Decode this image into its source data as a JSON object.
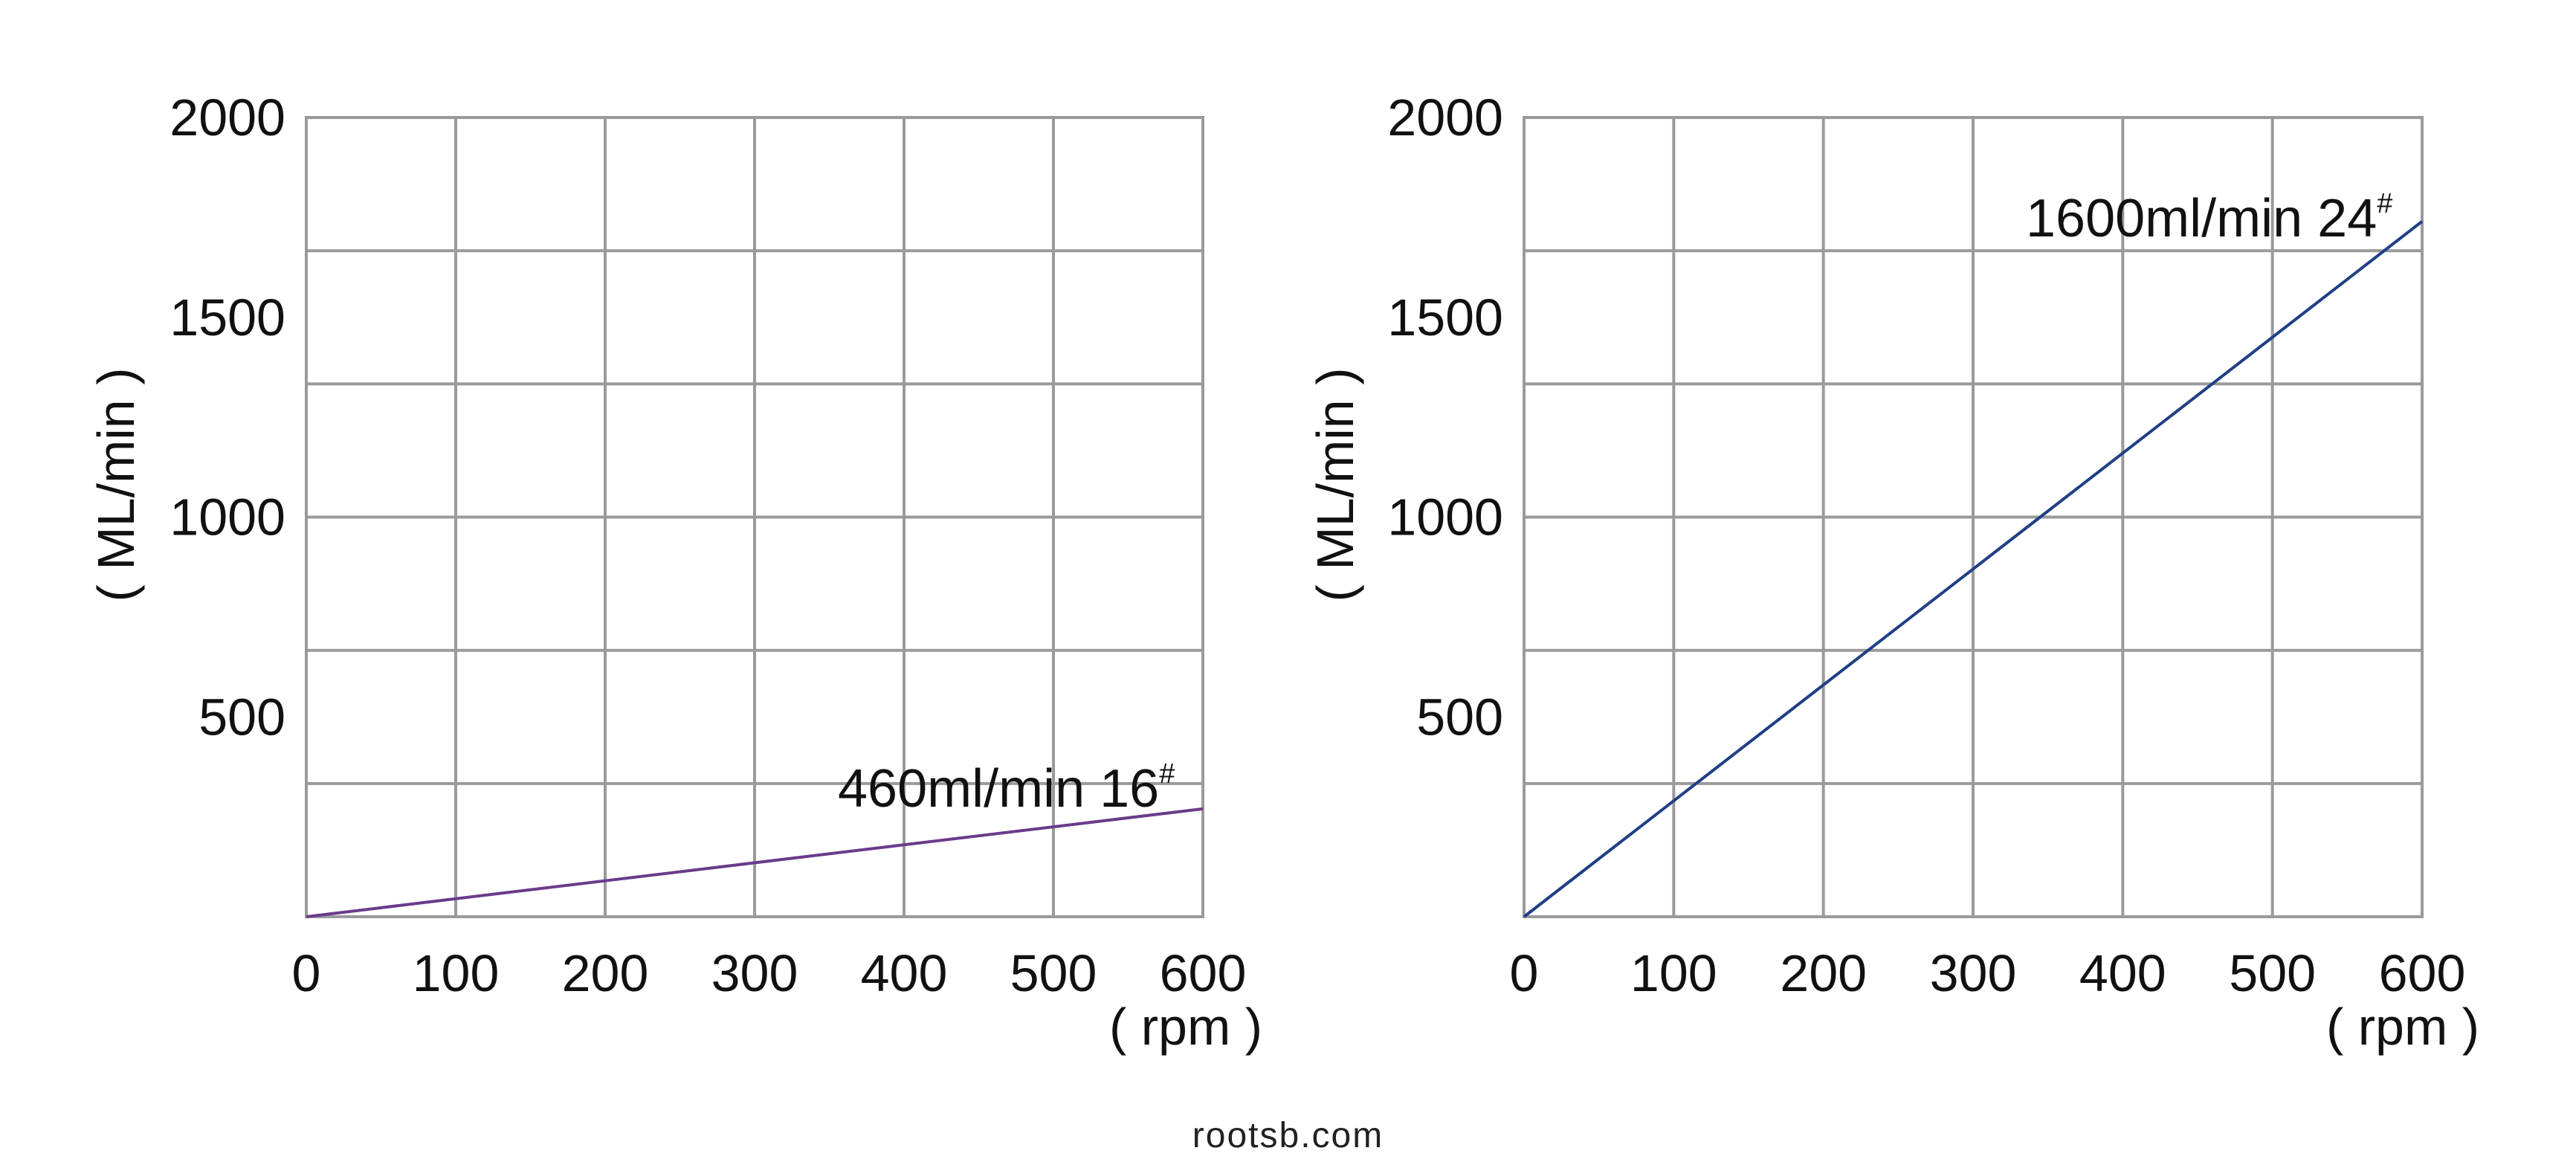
{
  "chart_data": [
    {
      "type": "line",
      "title": "",
      "xlabel": "( rpm )",
      "ylabel": "( ML/min )",
      "xlim": [
        0,
        600
      ],
      "ylim": [
        0,
        2000
      ],
      "xticks": [
        "0",
        "100",
        "200",
        "300",
        "400",
        "500",
        "600"
      ],
      "yticks": [
        "500",
        "1000",
        "1500",
        "2000"
      ],
      "grid": true,
      "grid_x_step": 100,
      "grid_y_step": 333.3,
      "series": [
        {
          "x": [
            0,
            600
          ],
          "y": [
            0,
            270
          ],
          "color": "#6a3a8c"
        }
      ],
      "annotation": {
        "main": "460ml/min",
        "tube": "16",
        "mark": "#"
      }
    },
    {
      "type": "line",
      "title": "",
      "xlabel": "( rpm )",
      "ylabel": "( ML/min )",
      "xlim": [
        0,
        600
      ],
      "ylim": [
        0,
        2000
      ],
      "xticks": [
        "0",
        "100",
        "200",
        "300",
        "400",
        "500",
        "600"
      ],
      "yticks": [
        "500",
        "1000",
        "1500",
        "2000"
      ],
      "grid": true,
      "grid_x_step": 100,
      "grid_y_step": 333.3,
      "series": [
        {
          "x": [
            0,
            600
          ],
          "y": [
            0,
            1740
          ],
          "color": "#1f3f86"
        }
      ],
      "annotation": {
        "main": "1600ml/min",
        "tube": "24",
        "mark": "#"
      }
    }
  ],
  "footer": {
    "source": "rootsb.com"
  }
}
